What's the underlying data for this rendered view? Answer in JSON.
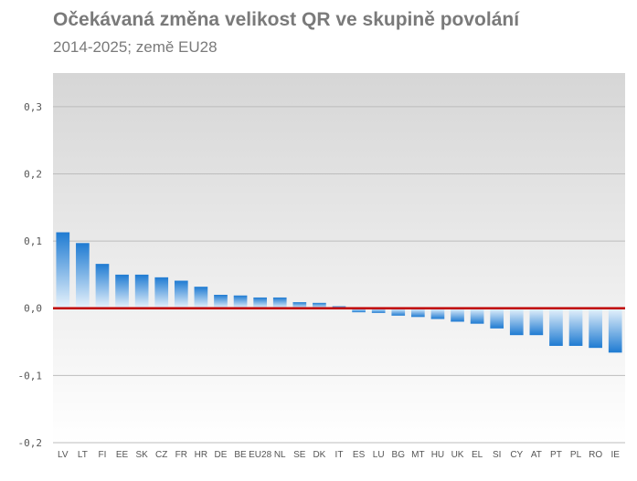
{
  "header": {
    "title": "Očekávaná změna velikost QR ve skupině povolání",
    "subtitle": "2014-2025; země EU28"
  },
  "colors": {
    "bar_top": "#1f7bd2",
    "bar_bottom": "#e8f3fc",
    "zero_line": "#c00000",
    "grid": "#bdbdbd",
    "plot_bg_top": "#d6d6d6",
    "plot_bg_bottom": "#ffffff"
  },
  "chart_data": {
    "type": "bar",
    "title": "Očekávaná změna velikost QR ve skupině povolání",
    "subtitle": "2014-2025; země EU28",
    "categories": [
      "LV",
      "LT",
      "FI",
      "EE",
      "SK",
      "CZ",
      "FR",
      "HR",
      "DE",
      "BE",
      "EU28",
      "NL",
      "SE",
      "DK",
      "IT",
      "ES",
      "LU",
      "BG",
      "MT",
      "HU",
      "UK",
      "EL",
      "SI",
      "CY",
      "AT",
      "PT",
      "PL",
      "RO",
      "IE"
    ],
    "values": [
      0.113,
      0.097,
      0.066,
      0.05,
      0.05,
      0.046,
      0.041,
      0.032,
      0.02,
      0.019,
      0.016,
      0.016,
      0.009,
      0.008,
      0.003,
      -0.006,
      -0.007,
      -0.011,
      -0.013,
      -0.016,
      -0.02,
      -0.023,
      -0.03,
      -0.04,
      -0.04,
      -0.056,
      -0.056,
      -0.059,
      -0.066
    ],
    "ylim": [
      -0.2,
      0.35
    ],
    "yticks": [
      -0.2,
      -0.1,
      0.0,
      0.1,
      0.2,
      0.3
    ],
    "ytick_labels": [
      "-0,2",
      "-0,1",
      "0,0",
      "0,1",
      "0,2",
      "0,3"
    ],
    "xlabel": "",
    "ylabel": "",
    "grid": true,
    "legend": "none",
    "reference_line": 0
  }
}
